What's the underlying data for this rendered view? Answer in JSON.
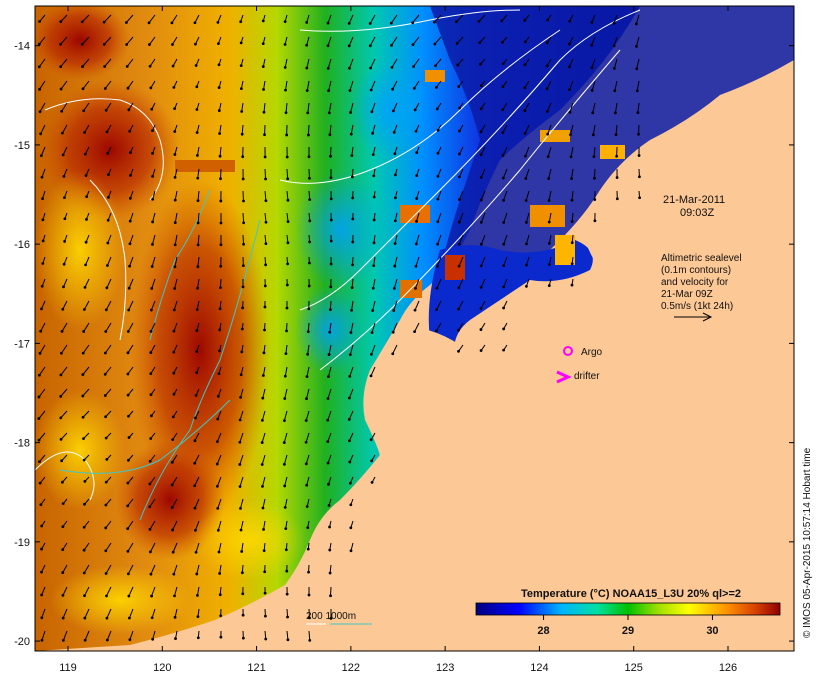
{
  "map": {
    "lon_ticks": [
      "119",
      "120",
      "121",
      "122",
      "123",
      "124",
      "125",
      "126"
    ],
    "lat_ticks": [
      "-14",
      "-15",
      "-16",
      "-17",
      "-18",
      "-19",
      "-20"
    ],
    "lon_range": [
      118.65,
      126.7
    ],
    "lat_range": [
      -13.6,
      -20.1
    ]
  },
  "annotations": {
    "date": "21-Mar-2011",
    "time": "09:03Z",
    "altimetry_lines": [
      "Altimetric sealevel",
      "(0.1m contours)",
      "and velocity for",
      "21-Mar 09Z",
      "0.5m/s (1kt 24h)"
    ],
    "argo_label": "Argo",
    "drifter_label": "drifter",
    "bathymetry_label": "200  1000m"
  },
  "colorbar": {
    "title": "Temperature (°C) NOAA15_L3U 20% ql>=2",
    "ticks": [
      "28",
      "29",
      "30"
    ],
    "range": [
      27.2,
      30.8
    ]
  },
  "credit": "© IMOS 05-Apr-2015 10:57:14 Hobart time",
  "colors": {
    "land": "#fcc895",
    "argo": "#ff00ff",
    "drifter": "#ff00ff",
    "contour_200m": "#ffffff",
    "contour_1000m": "#40c8c8"
  }
}
